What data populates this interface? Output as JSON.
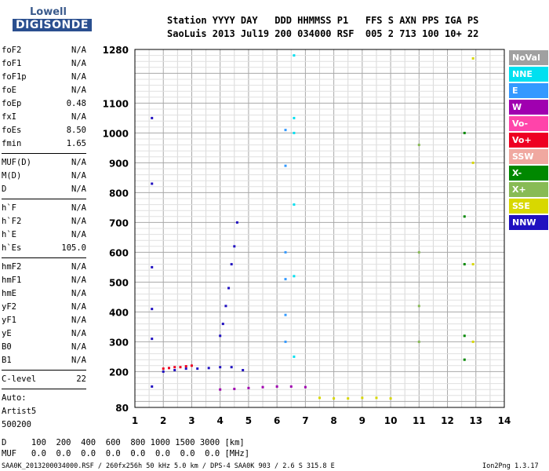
{
  "logo": {
    "top": "Lowell",
    "bottom": "DIGISONDE"
  },
  "header": {
    "labels": "Station YYYY DAY   DDD HHMMSS P1   FFS S AXN PPS IGA PS",
    "values": "SaoLuis 2013 Jul19 200 034000 RSF  005 2 713 100 10+ 22"
  },
  "params": {
    "group1": [
      {
        "name": "foF2",
        "value": "N/A"
      },
      {
        "name": "foF1",
        "value": "N/A"
      },
      {
        "name": "foF1p",
        "value": "N/A"
      },
      {
        "name": "foE",
        "value": "N/A"
      },
      {
        "name": "foEp",
        "value": "0.48"
      },
      {
        "name": "fxI",
        "value": "N/A"
      },
      {
        "name": "foEs",
        "value": "8.50"
      },
      {
        "name": "fmin",
        "value": "1.65"
      }
    ],
    "group2": [
      {
        "name": "MUF(D)",
        "value": "N/A"
      },
      {
        "name": "M(D)",
        "value": "N/A"
      },
      {
        "name": "D",
        "value": "N/A"
      }
    ],
    "group3": [
      {
        "name": "h`F",
        "value": "N/A"
      },
      {
        "name": "h`F2",
        "value": "N/A"
      },
      {
        "name": "h`E",
        "value": "N/A"
      },
      {
        "name": "h`Es",
        "value": "105.0"
      }
    ],
    "group4": [
      {
        "name": "hmF2",
        "value": "N/A"
      },
      {
        "name": "hmF1",
        "value": "N/A"
      },
      {
        "name": "hmE",
        "value": "N/A"
      },
      {
        "name": "yF2",
        "value": "N/A"
      },
      {
        "name": "yF1",
        "value": "N/A"
      },
      {
        "name": "yE",
        "value": "N/A"
      },
      {
        "name": "B0",
        "value": "N/A"
      },
      {
        "name": "B1",
        "value": "N/A"
      }
    ],
    "clevel": {
      "name": "C-level",
      "value": "22"
    },
    "auto": [
      "Auto:",
      "Artist5",
      "500200"
    ]
  },
  "muf_table": {
    "d_row": "D     100  200  400  600  800 1000 1500 3000 [km]",
    "muf_row": "MUF   0.0  0.0  0.0  0.0  0.0  0.0  0.0  0.0 [MHz]"
  },
  "footer": {
    "left": "SAA0K_2013200034000.RSF / 260fx256h 50 kHz 5.0 km / DPS-4 SAA0K 903 / 2.6 S 315.8 E",
    "right": "Ion2Png 1.3.17"
  },
  "legend": [
    {
      "label": "NoVal",
      "color": "#a0a0a0"
    },
    {
      "label": "NNE",
      "color": "#00e0f0"
    },
    {
      "label": "E",
      "color": "#3399ff"
    },
    {
      "label": "W",
      "color": "#a000b0"
    },
    {
      "label": "Vo-",
      "color": "#ff44aa"
    },
    {
      "label": "Vo+",
      "color": "#ee0022"
    },
    {
      "label": "SSW",
      "color": "#f0a8a0"
    },
    {
      "label": "X-",
      "color": "#008800"
    },
    {
      "label": "X+",
      "color": "#88bb55"
    },
    {
      "label": "SSE",
      "color": "#d8d800"
    },
    {
      "label": "NNW",
      "color": "#2010c0"
    }
  ],
  "chart_data": {
    "type": "scatter",
    "title": "",
    "xlabel": "",
    "ylabel": "",
    "xlim": [
      1,
      14
    ],
    "ylim": [
      80,
      1280
    ],
    "xticks": [
      1,
      2,
      3,
      4,
      5,
      6,
      7,
      8,
      9,
      10,
      11,
      12,
      13,
      14
    ],
    "yticks": [
      80,
      200,
      300,
      400,
      500,
      600,
      700,
      800,
      900,
      1000,
      1100,
      1280
    ],
    "grid": true,
    "traces": [
      {
        "name": "NNW",
        "x": [
          1.6,
          1.6,
          1.6,
          1.6,
          1.6,
          1.6
        ],
        "y": [
          150,
          310,
          410,
          550,
          830,
          1050
        ]
      },
      {
        "name": "NNW",
        "x": [
          2.0,
          2.4,
          2.8,
          3.2,
          3.6,
          4.0,
          4.4,
          4.8
        ],
        "y": [
          200,
          205,
          210,
          210,
          212,
          215,
          215,
          205
        ]
      },
      {
        "name": "Vo+",
        "x": [
          2.0,
          2.2,
          2.4,
          2.6,
          2.8,
          3.0
        ],
        "y": [
          210,
          212,
          215,
          215,
          218,
          220
        ]
      },
      {
        "name": "NNW",
        "x": [
          4.0,
          4.1,
          4.2,
          4.3,
          4.4,
          4.5,
          4.6
        ],
        "y": [
          320,
          360,
          420,
          480,
          560,
          620,
          700
        ]
      },
      {
        "name": "W",
        "x": [
          4.0,
          4.5,
          5.0,
          5.5,
          6.0,
          6.5,
          7.0
        ],
        "y": [
          140,
          142,
          145,
          148,
          150,
          150,
          148
        ]
      },
      {
        "name": "E",
        "x": [
          6.3,
          6.3,
          6.3,
          6.3,
          6.3,
          6.3
        ],
        "y": [
          300,
          390,
          510,
          600,
          890,
          1010
        ]
      },
      {
        "name": "NNE",
        "x": [
          6.6,
          6.6,
          6.6,
          6.6,
          6.6,
          6.6
        ],
        "y": [
          250,
          520,
          760,
          1000,
          1050,
          1260
        ]
      },
      {
        "name": "SSE",
        "x": [
          7.5,
          8.0,
          8.5,
          9.0,
          9.5,
          10.0
        ],
        "y": [
          112,
          110,
          110,
          112,
          112,
          110
        ]
      },
      {
        "name": "X-",
        "x": [
          12.6,
          12.6,
          12.6,
          12.6,
          12.6
        ],
        "y": [
          240,
          320,
          560,
          720,
          1000
        ]
      },
      {
        "name": "SSE",
        "x": [
          12.9,
          12.9,
          12.9,
          12.9
        ],
        "y": [
          300,
          560,
          900,
          1250
        ]
      },
      {
        "name": "X+",
        "x": [
          11.0,
          11.0,
          11.0,
          11.0
        ],
        "y": [
          300,
          420,
          600,
          960
        ]
      }
    ]
  }
}
